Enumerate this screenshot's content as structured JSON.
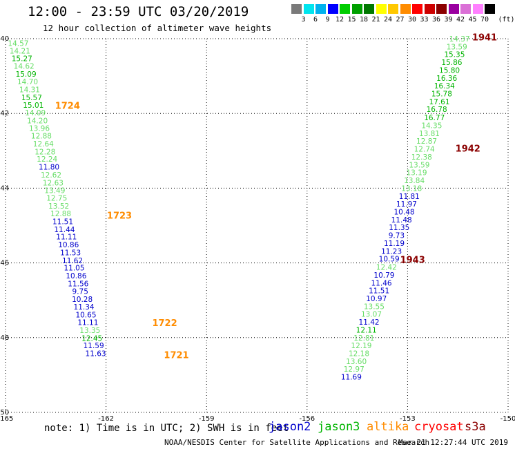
{
  "header": {
    "title": "12:00 - 23:59 UTC 03/20/2019",
    "subtitle": "12 hour collection of altimeter wave heights"
  },
  "color_scale": {
    "unit": "(ft)",
    "ticks": [
      "3",
      "6",
      "9",
      "12",
      "15",
      "18",
      "21",
      "24",
      "27",
      "30",
      "33",
      "36",
      "39",
      "42",
      "45",
      "70"
    ],
    "colors": [
      "#7a7a7a",
      "#00e5ee",
      "#00b2ee",
      "#0000ff",
      "#00cd00",
      "#00a000",
      "#007800",
      "#ffff00",
      "#ffc800",
      "#ff8c00",
      "#ff0000",
      "#cd0000",
      "#8b0000",
      "#9a00a0",
      "#da70d6",
      "#ff80ff",
      "#000000"
    ]
  },
  "footer": {
    "note": "note: 1) Time is in UTC; 2) SWH is in feet",
    "credit": "NOAA/NESDIS Center for Satellite Applications and Research",
    "timestamp": "Mar 21 12:27:44 UTC 2019",
    "legend": [
      {
        "name": "jason2",
        "color": "#0000cc"
      },
      {
        "name": "jason3",
        "color": "#00b400"
      },
      {
        "name": "altika",
        "color": "#ff8c00"
      },
      {
        "name": "cryosat",
        "color": "#ff0000"
      },
      {
        "name": "s3a",
        "color": "#8b0000"
      }
    ]
  },
  "chart_data": {
    "type": "scatter",
    "xlim": [
      -165,
      -150
    ],
    "ylim": [
      -50,
      -40
    ],
    "xticks": [
      "-165",
      "-162",
      "-159",
      "-156",
      "-153",
      "-150"
    ],
    "yticks": [
      "-40",
      "-42",
      "-44",
      "-46",
      "-48",
      "-50"
    ],
    "grid": true,
    "colors": {
      "jason2": "#0000cc",
      "jason3": "#00b400",
      "light": "#66dd66",
      "altika": "#ff8c00",
      "s3a": "#8b0000"
    },
    "points": [
      {
        "x": -164.62,
        "y": -40.12,
        "v": "14.57",
        "c": "light"
      },
      {
        "x": -164.57,
        "y": -40.32,
        "v": "14.21",
        "c": "light"
      },
      {
        "x": -164.51,
        "y": -40.53,
        "v": "15.27",
        "c": "jason3"
      },
      {
        "x": -164.45,
        "y": -40.73,
        "v": "14.62",
        "c": "light"
      },
      {
        "x": -164.39,
        "y": -40.94,
        "v": "15.09",
        "c": "jason3"
      },
      {
        "x": -164.34,
        "y": -41.15,
        "v": "14.70",
        "c": "light"
      },
      {
        "x": -164.28,
        "y": -41.36,
        "v": "14.31",
        "c": "light"
      },
      {
        "x": -164.22,
        "y": -41.57,
        "v": "15.57",
        "c": "jason3"
      },
      {
        "x": -164.17,
        "y": -41.77,
        "v": "15.01",
        "c": "jason3"
      },
      {
        "x": -164.11,
        "y": -41.98,
        "v": "14.09",
        "c": "light"
      },
      {
        "x": -164.05,
        "y": -42.19,
        "v": "14.20",
        "c": "light"
      },
      {
        "x": -163.99,
        "y": -42.39,
        "v": "13.96",
        "c": "light"
      },
      {
        "x": -163.93,
        "y": -42.6,
        "v": "12.88",
        "c": "light"
      },
      {
        "x": -163.87,
        "y": -42.81,
        "v": "12.64",
        "c": "light"
      },
      {
        "x": -163.82,
        "y": -43.02,
        "v": "12.28",
        "c": "light"
      },
      {
        "x": -163.76,
        "y": -43.22,
        "v": "12.24",
        "c": "light"
      },
      {
        "x": -163.7,
        "y": -43.43,
        "v": "11.80",
        "c": "jason2"
      },
      {
        "x": -163.64,
        "y": -43.64,
        "v": "12.62",
        "c": "light"
      },
      {
        "x": -163.58,
        "y": -43.85,
        "v": "12.63",
        "c": "light"
      },
      {
        "x": -163.53,
        "y": -44.06,
        "v": "13.49",
        "c": "light"
      },
      {
        "x": -163.47,
        "y": -44.26,
        "v": "12.75",
        "c": "light"
      },
      {
        "x": -163.41,
        "y": -44.47,
        "v": "13.52",
        "c": "light"
      },
      {
        "x": -163.35,
        "y": -44.68,
        "v": "12.88",
        "c": "light"
      },
      {
        "x": -163.29,
        "y": -44.89,
        "v": "11.51",
        "c": "jason2"
      },
      {
        "x": -163.24,
        "y": -45.1,
        "v": "11.44",
        "c": "jason2"
      },
      {
        "x": -163.18,
        "y": -45.3,
        "v": "11.11",
        "c": "jason2"
      },
      {
        "x": -163.12,
        "y": -45.51,
        "v": "10.86",
        "c": "jason2"
      },
      {
        "x": -163.06,
        "y": -45.72,
        "v": "11.53",
        "c": "jason2"
      },
      {
        "x": -163.0,
        "y": -45.93,
        "v": "11.62",
        "c": "jason2"
      },
      {
        "x": -162.95,
        "y": -46.13,
        "v": "11.05",
        "c": "jason2"
      },
      {
        "x": -162.89,
        "y": -46.34,
        "v": "10.86",
        "c": "jason2"
      },
      {
        "x": -162.83,
        "y": -46.55,
        "v": "11.56",
        "c": "jason2"
      },
      {
        "x": -162.77,
        "y": -46.76,
        "v": "9.75",
        "c": "jason2"
      },
      {
        "x": -162.71,
        "y": -46.97,
        "v": "10.28",
        "c": "jason2"
      },
      {
        "x": -162.66,
        "y": -47.17,
        "v": "11.34",
        "c": "jason2"
      },
      {
        "x": -162.6,
        "y": -47.38,
        "v": "10.65",
        "c": "jason2"
      },
      {
        "x": -162.54,
        "y": -47.59,
        "v": "11.11",
        "c": "jason2"
      },
      {
        "x": -162.48,
        "y": -47.8,
        "v": "13.35",
        "c": "light"
      },
      {
        "x": -162.42,
        "y": -48.01,
        "v": "12.45",
        "c": "jason3"
      },
      {
        "x": -162.37,
        "y": -48.21,
        "v": "11.59",
        "c": "jason2"
      },
      {
        "x": -162.31,
        "y": -48.42,
        "v": "11.63",
        "c": "jason2"
      },
      {
        "x": -151.45,
        "y": -40.0,
        "v": "14.37",
        "c": "light"
      },
      {
        "x": -151.53,
        "y": -40.21,
        "v": "13.59",
        "c": "light"
      },
      {
        "x": -151.6,
        "y": -40.42,
        "v": "15.35",
        "c": "jason3"
      },
      {
        "x": -151.68,
        "y": -40.63,
        "v": "15.86",
        "c": "jason3"
      },
      {
        "x": -151.75,
        "y": -40.84,
        "v": "15.80",
        "c": "jason3"
      },
      {
        "x": -151.83,
        "y": -41.05,
        "v": "16.36",
        "c": "jason3"
      },
      {
        "x": -151.9,
        "y": -41.26,
        "v": "16.34",
        "c": "jason3"
      },
      {
        "x": -151.98,
        "y": -41.47,
        "v": "15.78",
        "c": "jason3"
      },
      {
        "x": -152.05,
        "y": -41.68,
        "v": "17.61",
        "c": "jason3"
      },
      {
        "x": -152.13,
        "y": -41.89,
        "v": "16.78",
        "c": "jason3"
      },
      {
        "x": -152.2,
        "y": -42.11,
        "v": "16.77",
        "c": "jason3"
      },
      {
        "x": -152.28,
        "y": -42.32,
        "v": "14.35",
        "c": "light"
      },
      {
        "x": -152.35,
        "y": -42.53,
        "v": "13.81",
        "c": "light"
      },
      {
        "x": -152.43,
        "y": -42.74,
        "v": "12.87",
        "c": "light"
      },
      {
        "x": -152.5,
        "y": -42.95,
        "v": "12.74",
        "c": "light"
      },
      {
        "x": -152.58,
        "y": -43.16,
        "v": "12.38",
        "c": "light"
      },
      {
        "x": -152.65,
        "y": -43.37,
        "v": "13.59",
        "c": "light"
      },
      {
        "x": -152.73,
        "y": -43.58,
        "v": "13.19",
        "c": "light"
      },
      {
        "x": -152.8,
        "y": -43.79,
        "v": "13.84",
        "c": "light"
      },
      {
        "x": -152.88,
        "y": -44.0,
        "v": "13.18",
        "c": "light"
      },
      {
        "x": -152.95,
        "y": -44.21,
        "v": "11.81",
        "c": "jason2"
      },
      {
        "x": -153.03,
        "y": -44.42,
        "v": "11.97",
        "c": "jason2"
      },
      {
        "x": -153.1,
        "y": -44.63,
        "v": "10.48",
        "c": "jason2"
      },
      {
        "x": -153.18,
        "y": -44.84,
        "v": "11.48",
        "c": "jason2"
      },
      {
        "x": -153.25,
        "y": -45.05,
        "v": "11.35",
        "c": "jason2"
      },
      {
        "x": -153.33,
        "y": -45.26,
        "v": "9.73",
        "c": "jason2"
      },
      {
        "x": -153.4,
        "y": -45.47,
        "v": "11.19",
        "c": "jason2"
      },
      {
        "x": -153.48,
        "y": -45.68,
        "v": "11.23",
        "c": "jason2"
      },
      {
        "x": -153.55,
        "y": -45.89,
        "v": "10.59",
        "c": "jason2"
      },
      {
        "x": -153.63,
        "y": -46.11,
        "v": "12.42",
        "c": "light"
      },
      {
        "x": -153.7,
        "y": -46.32,
        "v": "10.79",
        "c": "jason2"
      },
      {
        "x": -153.78,
        "y": -46.53,
        "v": "11.46",
        "c": "jason2"
      },
      {
        "x": -153.85,
        "y": -46.74,
        "v": "11.51",
        "c": "jason2"
      },
      {
        "x": -153.93,
        "y": -46.95,
        "v": "10.97",
        "c": "jason2"
      },
      {
        "x": -154.0,
        "y": -47.16,
        "v": "13.55",
        "c": "light"
      },
      {
        "x": -154.08,
        "y": -47.37,
        "v": "13.07",
        "c": "light"
      },
      {
        "x": -154.15,
        "y": -47.58,
        "v": "11.42",
        "c": "jason2"
      },
      {
        "x": -154.23,
        "y": -47.79,
        "v": "12.11",
        "c": "jason3"
      },
      {
        "x": -154.3,
        "y": -48.0,
        "v": "12.81",
        "c": "light"
      },
      {
        "x": -154.38,
        "y": -48.21,
        "v": "12.19",
        "c": "light"
      },
      {
        "x": -154.45,
        "y": -48.42,
        "v": "12.18",
        "c": "light"
      },
      {
        "x": -154.53,
        "y": -48.63,
        "v": "13.60",
        "c": "light"
      },
      {
        "x": -154.6,
        "y": -48.84,
        "v": "12.97",
        "c": "light"
      },
      {
        "x": -154.68,
        "y": -49.05,
        "v": "11.69",
        "c": "jason2"
      }
    ],
    "annotations": [
      {
        "x": -163.15,
        "y": -41.78,
        "text": "1724",
        "c": "altika"
      },
      {
        "x": -161.6,
        "y": -44.72,
        "text": "1723",
        "c": "altika"
      },
      {
        "x": -160.25,
        "y": -47.6,
        "text": "1722",
        "c": "altika"
      },
      {
        "x": -159.9,
        "y": -48.46,
        "text": "1721",
        "c": "altika"
      },
      {
        "x": -150.7,
        "y": -39.95,
        "text": "1941",
        "c": "s3a"
      },
      {
        "x": -151.2,
        "y": -42.93,
        "text": "1942",
        "c": "s3a"
      },
      {
        "x": -152.85,
        "y": -45.91,
        "text": "1943",
        "c": "s3a"
      }
    ]
  }
}
